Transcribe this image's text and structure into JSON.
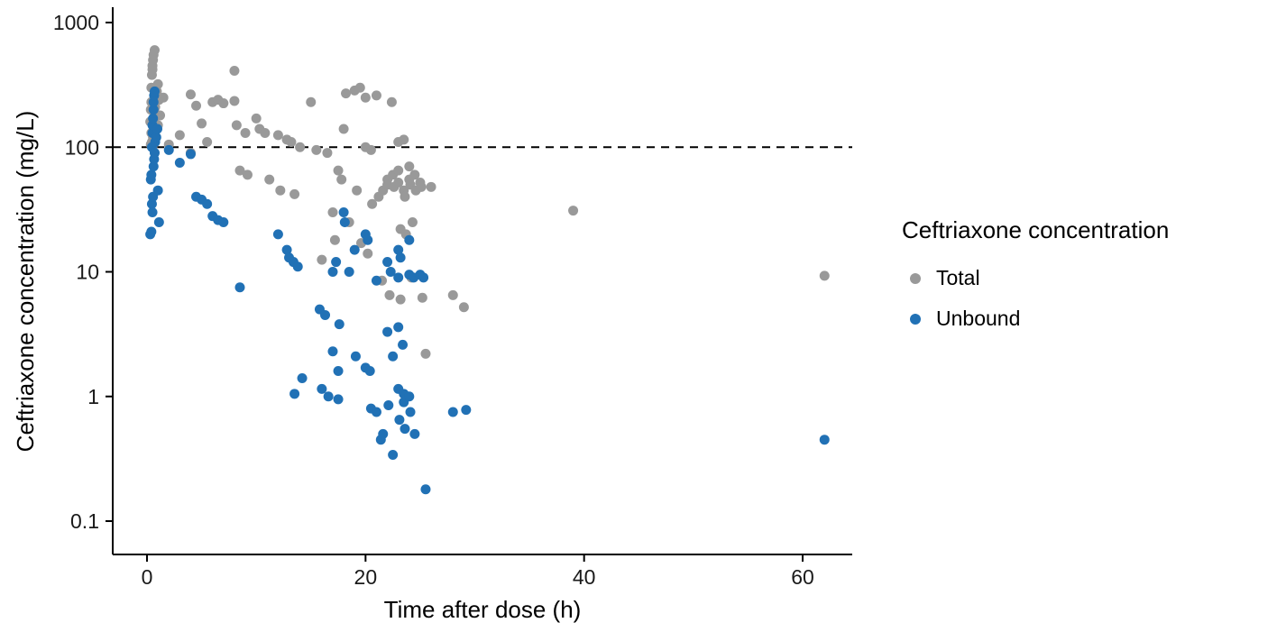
{
  "chart_data": {
    "type": "scatter",
    "title": "",
    "xlabel": "Time after dose (h)",
    "ylabel": "Ceftriaxone concentration (mg/L)",
    "y_scale": "log",
    "xlim": [
      -3,
      64.5
    ],
    "ylim": [
      0.07,
      1300
    ],
    "x_ticks": [
      0,
      20,
      40,
      60
    ],
    "y_ticks": [
      0.1,
      1,
      10,
      100,
      1000
    ],
    "y_tick_labels": [
      "0.1",
      "1",
      "10",
      "100",
      "1000"
    ],
    "grid": "off",
    "reference_line": {
      "y": 100,
      "style": "dashed",
      "color": "#000000"
    },
    "legend": {
      "title": "Ceftriaxone concentration",
      "position": "right",
      "items": [
        {
          "label": "Total",
          "color": "#999999"
        },
        {
          "label": "Unbound",
          "color": "#2171b5"
        }
      ]
    },
    "series": [
      {
        "name": "Total",
        "color": "#999999",
        "points": [
          [
            0.3,
            160
          ],
          [
            0.35,
            200
          ],
          [
            0.4,
            230
          ],
          [
            0.4,
            300
          ],
          [
            0.45,
            380
          ],
          [
            0.5,
            420
          ],
          [
            0.5,
            450
          ],
          [
            0.55,
            500
          ],
          [
            0.6,
            550
          ],
          [
            0.7,
            600
          ],
          [
            0.4,
            130
          ],
          [
            0.45,
            110
          ],
          [
            0.5,
            100
          ],
          [
            0.55,
            120
          ],
          [
            0.6,
            140
          ],
          [
            0.65,
            170
          ],
          [
            0.7,
            190
          ],
          [
            0.75,
            210
          ],
          [
            0.8,
            250
          ],
          [
            0.9,
            280
          ],
          [
            1.0,
            320
          ],
          [
            1.0,
            150
          ],
          [
            1.1,
            240
          ],
          [
            1.2,
            180
          ],
          [
            0.35,
            105
          ],
          [
            1.5,
            250
          ],
          [
            2.0,
            105
          ],
          [
            3.0,
            125
          ],
          [
            4.0,
            265
          ],
          [
            4.0,
            90
          ],
          [
            4.5,
            215
          ],
          [
            5.0,
            155
          ],
          [
            5.5,
            110
          ],
          [
            6.0,
            230
          ],
          [
            6.5,
            240
          ],
          [
            7.0,
            225
          ],
          [
            8.0,
            410
          ],
          [
            8.0,
            235
          ],
          [
            8.2,
            150
          ],
          [
            8.5,
            65
          ],
          [
            9.0,
            130
          ],
          [
            9.2,
            60
          ],
          [
            10.0,
            170
          ],
          [
            10.3,
            140
          ],
          [
            10.8,
            130
          ],
          [
            11.2,
            55
          ],
          [
            12.0,
            125
          ],
          [
            12.2,
            45
          ],
          [
            12.8,
            115
          ],
          [
            13.2,
            110
          ],
          [
            13.5,
            42
          ],
          [
            14.0,
            100
          ],
          [
            15.0,
            230
          ],
          [
            15.5,
            95
          ],
          [
            16.0,
            12.5
          ],
          [
            16.5,
            90
          ],
          [
            17.0,
            30
          ],
          [
            17.2,
            18
          ],
          [
            17.5,
            65
          ],
          [
            17.8,
            55
          ],
          [
            18.0,
            140
          ],
          [
            18.2,
            270
          ],
          [
            18.5,
            25
          ],
          [
            19.0,
            285
          ],
          [
            19.2,
            45
          ],
          [
            19.5,
            300
          ],
          [
            19.6,
            17
          ],
          [
            20.0,
            250
          ],
          [
            20.0,
            100
          ],
          [
            20.2,
            14
          ],
          [
            20.5,
            95
          ],
          [
            20.6,
            35
          ],
          [
            21.0,
            260
          ],
          [
            21.2,
            40
          ],
          [
            21.5,
            8.5
          ],
          [
            21.6,
            45
          ],
          [
            22.0,
            55
          ],
          [
            22.0,
            50
          ],
          [
            22.2,
            6.5
          ],
          [
            22.4,
            230
          ],
          [
            22.5,
            60
          ],
          [
            22.6,
            48
          ],
          [
            23.0,
            110
          ],
          [
            23.0,
            65
          ],
          [
            23.0,
            52
          ],
          [
            23.2,
            22
          ],
          [
            23.2,
            6
          ],
          [
            23.5,
            115
          ],
          [
            23.5,
            45
          ],
          [
            23.6,
            40
          ],
          [
            23.7,
            20
          ],
          [
            24.0,
            70
          ],
          [
            24.0,
            55
          ],
          [
            24.1,
            50
          ],
          [
            24.2,
            9
          ],
          [
            24.3,
            25
          ],
          [
            24.5,
            60
          ],
          [
            24.6,
            45
          ],
          [
            25.0,
            52
          ],
          [
            25.1,
            48
          ],
          [
            25.2,
            6.2
          ],
          [
            25.5,
            2.2
          ],
          [
            26.0,
            48
          ],
          [
            28.0,
            6.5
          ],
          [
            29.0,
            5.2
          ],
          [
            39.0,
            31
          ],
          [
            62.0,
            9.3
          ]
        ]
      },
      {
        "name": "Unbound",
        "color": "#2171b5",
        "points": [
          [
            0.3,
            20
          ],
          [
            0.35,
            55
          ],
          [
            0.4,
            60
          ],
          [
            0.45,
            100
          ],
          [
            0.5,
            130
          ],
          [
            0.5,
            150
          ],
          [
            0.55,
            170
          ],
          [
            0.6,
            200
          ],
          [
            0.6,
            230
          ],
          [
            0.65,
            260
          ],
          [
            0.7,
            280
          ],
          [
            0.45,
            35
          ],
          [
            0.5,
            30
          ],
          [
            0.55,
            40
          ],
          [
            0.6,
            70
          ],
          [
            0.65,
            80
          ],
          [
            0.7,
            90
          ],
          [
            0.75,
            110
          ],
          [
            0.85,
            120
          ],
          [
            0.95,
            140
          ],
          [
            1.0,
            45
          ],
          [
            1.1,
            25
          ],
          [
            0.4,
            21
          ],
          [
            2.0,
            95
          ],
          [
            3.0,
            75
          ],
          [
            4.0,
            88
          ],
          [
            4.5,
            40
          ],
          [
            5.0,
            38
          ],
          [
            5.5,
            35
          ],
          [
            6.0,
            28
          ],
          [
            6.5,
            26
          ],
          [
            7.0,
            25
          ],
          [
            8.5,
            7.5
          ],
          [
            12.0,
            20
          ],
          [
            12.8,
            15
          ],
          [
            13.0,
            13
          ],
          [
            13.4,
            12
          ],
          [
            13.8,
            11
          ],
          [
            13.5,
            1.05
          ],
          [
            14.2,
            1.4
          ],
          [
            15.8,
            5
          ],
          [
            16.3,
            4.5
          ],
          [
            16.0,
            1.15
          ],
          [
            16.6,
            1.0
          ],
          [
            17.0,
            10
          ],
          [
            17.0,
            2.3
          ],
          [
            17.3,
            12
          ],
          [
            17.5,
            1.6
          ],
          [
            17.5,
            0.95
          ],
          [
            17.6,
            3.8
          ],
          [
            18.0,
            30
          ],
          [
            18.1,
            25
          ],
          [
            18.5,
            10
          ],
          [
            19.0,
            15
          ],
          [
            19.1,
            2.1
          ],
          [
            20.0,
            20
          ],
          [
            20.0,
            1.7
          ],
          [
            20.2,
            18
          ],
          [
            20.4,
            1.6
          ],
          [
            20.5,
            0.8
          ],
          [
            21.0,
            8.5
          ],
          [
            21.0,
            0.75
          ],
          [
            21.4,
            0.45
          ],
          [
            21.6,
            0.5
          ],
          [
            22.0,
            12
          ],
          [
            22.0,
            3.3
          ],
          [
            22.1,
            0.85
          ],
          [
            22.3,
            10
          ],
          [
            22.5,
            2.1
          ],
          [
            22.5,
            0.34
          ],
          [
            23.0,
            15
          ],
          [
            23.0,
            9
          ],
          [
            23.0,
            3.6
          ],
          [
            23.0,
            1.15
          ],
          [
            23.1,
            0.65
          ],
          [
            23.2,
            13
          ],
          [
            23.4,
            2.6
          ],
          [
            23.5,
            1.05
          ],
          [
            23.5,
            0.9
          ],
          [
            23.6,
            0.55
          ],
          [
            24.0,
            18
          ],
          [
            24.0,
            9.5
          ],
          [
            24.0,
            1.0
          ],
          [
            24.1,
            0.75
          ],
          [
            24.4,
            9
          ],
          [
            24.5,
            0.5
          ],
          [
            25.0,
            9.5
          ],
          [
            25.3,
            9
          ],
          [
            25.5,
            0.18
          ],
          [
            28.0,
            0.75
          ],
          [
            29.2,
            0.78
          ],
          [
            62.0,
            0.45
          ]
        ]
      }
    ]
  }
}
